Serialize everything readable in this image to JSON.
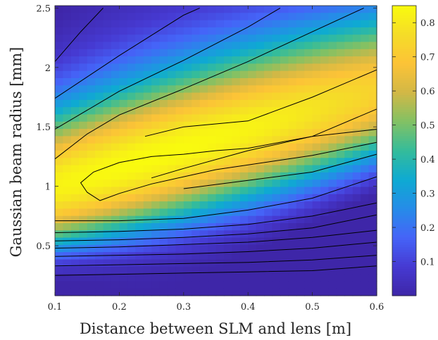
{
  "chart_data": {
    "type": "heatmap",
    "title": "",
    "xlabel": "Distance between SLM and lens [m]",
    "ylabel": "Gaussian beam radius [mm]",
    "xlim": [
      0.1,
      0.6
    ],
    "ylim": [
      0.08,
      2.52
    ],
    "x_ticks": [
      "0.1",
      "0.2",
      "0.3",
      "0.4",
      "0.5",
      "0.6"
    ],
    "y_ticks": [
      "0.5",
      "1",
      "1.5",
      "2",
      "2.5"
    ],
    "colorbar": {
      "limits": [
        0,
        0.85
      ],
      "ticks": [
        "0.1",
        "0.2",
        "0.3",
        "0.4",
        "0.5",
        "0.6",
        "0.7",
        "0.8"
      ],
      "colormap": "parula"
    },
    "peak": {
      "x": 0.25,
      "y": 1.1,
      "value": 0.85
    },
    "contour_levels": [
      0.2,
      0.3,
      0.4,
      0.5,
      0.6,
      0.7,
      0.8
    ],
    "contours": {
      "upper": [
        {
          "x": [
            0.1,
            0.14,
            0.175
          ],
          "y": [
            2.05,
            2.3,
            2.5
          ]
        },
        {
          "x": [
            0.1,
            0.15,
            0.2,
            0.25,
            0.3,
            0.325
          ],
          "y": [
            1.74,
            1.92,
            2.1,
            2.27,
            2.44,
            2.5
          ]
        },
        {
          "x": [
            0.1,
            0.15,
            0.2,
            0.3,
            0.4,
            0.45
          ],
          "y": [
            1.48,
            1.64,
            1.8,
            2.06,
            2.34,
            2.5
          ]
        },
        {
          "x": [
            0.1,
            0.15,
            0.2,
            0.3,
            0.4,
            0.5,
            0.58
          ],
          "y": [
            1.23,
            1.44,
            1.6,
            1.82,
            2.05,
            2.3,
            2.5
          ]
        },
        {
          "x": [
            0.24,
            0.3,
            0.4,
            0.5,
            0.6
          ],
          "y": [
            1.42,
            1.5,
            1.55,
            1.75,
            1.98
          ]
        },
        {
          "x": [
            0.25,
            0.3,
            0.4,
            0.5,
            0.6
          ],
          "y": [
            1.07,
            1.15,
            1.3,
            1.42,
            1.65
          ]
        },
        {
          "x": [
            0.3,
            0.4,
            0.5,
            0.6
          ],
          "y": [
            0.98,
            1.05,
            1.12,
            1.27
          ]
        }
      ],
      "lower": [
        {
          "x": [
            0.1,
            0.2,
            0.3,
            0.4,
            0.5,
            0.6
          ],
          "y": [
            0.71,
            0.71,
            0.73,
            0.8,
            0.9,
            1.08
          ]
        },
        {
          "x": [
            0.1,
            0.2,
            0.3,
            0.4,
            0.5,
            0.6
          ],
          "y": [
            0.61,
            0.62,
            0.64,
            0.68,
            0.75,
            0.86
          ]
        },
        {
          "x": [
            0.1,
            0.2,
            0.3,
            0.4,
            0.5,
            0.6
          ],
          "y": [
            0.54,
            0.55,
            0.57,
            0.6,
            0.65,
            0.76
          ]
        },
        {
          "x": [
            0.1,
            0.2,
            0.3,
            0.4,
            0.5,
            0.6
          ],
          "y": [
            0.48,
            0.49,
            0.51,
            0.53,
            0.57,
            0.63
          ]
        },
        {
          "x": [
            0.1,
            0.2,
            0.3,
            0.4,
            0.5,
            0.6
          ],
          "y": [
            0.41,
            0.42,
            0.43,
            0.45,
            0.48,
            0.53
          ]
        },
        {
          "x": [
            0.1,
            0.2,
            0.3,
            0.4,
            0.5,
            0.6
          ],
          "y": [
            0.33,
            0.34,
            0.35,
            0.36,
            0.38,
            0.42
          ]
        },
        {
          "x": [
            0.1,
            0.2,
            0.3,
            0.4,
            0.5,
            0.6
          ],
          "y": [
            0.25,
            0.26,
            0.27,
            0.28,
            0.29,
            0.33
          ]
        }
      ],
      "closed": [
        {
          "x": [
            0.15,
            0.14,
            0.16,
            0.2,
            0.25,
            0.3,
            0.35,
            0.4,
            0.5,
            0.6,
            0.6,
            0.5,
            0.4,
            0.35,
            0.3,
            0.25,
            0.2,
            0.17,
            0.15
          ],
          "y": [
            0.95,
            1.03,
            1.12,
            1.2,
            1.25,
            1.27,
            1.3,
            1.32,
            1.42,
            1.48,
            1.37,
            1.26,
            1.18,
            1.14,
            1.08,
            1.02,
            0.94,
            0.88,
            0.95
          ]
        }
      ]
    }
  }
}
